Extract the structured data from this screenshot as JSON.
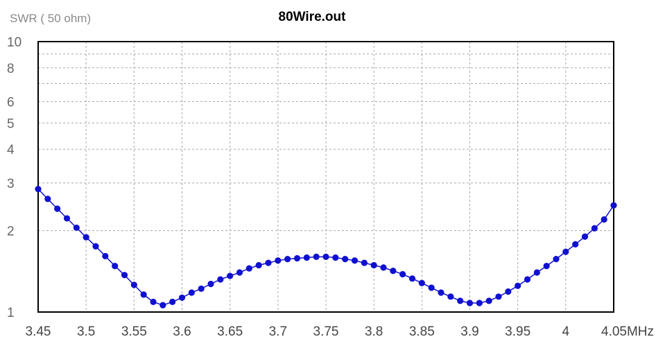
{
  "chart_data": {
    "type": "line",
    "title": "80Wire.out",
    "ylabel": "SWR ( 50 ohm)",
    "xlabel": "",
    "x_unit": "MHz",
    "y_scale": "log",
    "xlim": [
      3.45,
      4.05
    ],
    "ylim": [
      1,
      10
    ],
    "x_ticks": [
      {
        "value": 3.45,
        "label": "3.45"
      },
      {
        "value": 3.5,
        "label": "3.5"
      },
      {
        "value": 3.55,
        "label": "3.55"
      },
      {
        "value": 3.6,
        "label": "3.6"
      },
      {
        "value": 3.65,
        "label": "3.65"
      },
      {
        "value": 3.7,
        "label": "3.7"
      },
      {
        "value": 3.75,
        "label": "3.75"
      },
      {
        "value": 3.8,
        "label": "3.8"
      },
      {
        "value": 3.85,
        "label": "3.85"
      },
      {
        "value": 3.9,
        "label": "3.9"
      },
      {
        "value": 3.95,
        "label": "3.95"
      },
      {
        "value": 4.0,
        "label": "4"
      },
      {
        "value": 4.05,
        "label": "4.05MHz"
      }
    ],
    "y_ticks": [
      {
        "value": 1,
        "label": "1"
      },
      {
        "value": 2,
        "label": "2"
      },
      {
        "value": 3,
        "label": "3"
      },
      {
        "value": 4,
        "label": "4"
      },
      {
        "value": 5,
        "label": "5"
      },
      {
        "value": 6,
        "label": "6"
      },
      {
        "value": 8,
        "label": "8"
      },
      {
        "value": 10,
        "label": "10"
      }
    ],
    "grid": true,
    "series": [
      {
        "color": "#1010d0",
        "x": [
          3.45,
          3.46,
          3.47,
          3.48,
          3.49,
          3.5,
          3.51,
          3.52,
          3.53,
          3.54,
          3.55,
          3.56,
          3.57,
          3.58,
          3.59,
          3.6,
          3.61,
          3.62,
          3.63,
          3.64,
          3.65,
          3.66,
          3.67,
          3.68,
          3.69,
          3.7,
          3.71,
          3.72,
          3.73,
          3.74,
          3.75,
          3.76,
          3.77,
          3.78,
          3.79,
          3.8,
          3.81,
          3.82,
          3.83,
          3.84,
          3.85,
          3.86,
          3.87,
          3.88,
          3.89,
          3.9,
          3.91,
          3.92,
          3.93,
          3.94,
          3.95,
          3.96,
          3.97,
          3.98,
          3.99,
          4.0,
          4.01,
          4.02,
          4.03,
          4.04,
          4.05
        ],
        "y": [
          2.85,
          2.62,
          2.41,
          2.22,
          2.05,
          1.89,
          1.75,
          1.61,
          1.48,
          1.37,
          1.26,
          1.16,
          1.09,
          1.06,
          1.09,
          1.13,
          1.18,
          1.22,
          1.27,
          1.32,
          1.36,
          1.4,
          1.45,
          1.49,
          1.52,
          1.55,
          1.57,
          1.58,
          1.59,
          1.6,
          1.6,
          1.59,
          1.57,
          1.55,
          1.52,
          1.49,
          1.46,
          1.42,
          1.38,
          1.33,
          1.28,
          1.23,
          1.18,
          1.14,
          1.1,
          1.08,
          1.08,
          1.1,
          1.14,
          1.19,
          1.25,
          1.32,
          1.4,
          1.48,
          1.57,
          1.67,
          1.78,
          1.9,
          2.04,
          2.2,
          2.48
        ]
      }
    ]
  }
}
